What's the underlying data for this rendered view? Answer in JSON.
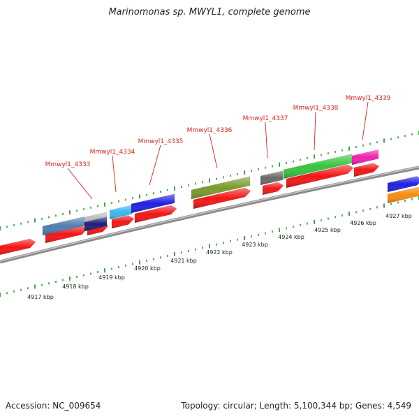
{
  "title": "Marinomonas sp. MWYL1, complete genome",
  "footer": {
    "accession": "Accession: NC_009654",
    "summary": "Topology: circular; Length: 5,100,344 bp; Genes: 4,549"
  },
  "colors": {
    "cds_red": "#f21616",
    "backbone": "#8a8a8a",
    "tick_green": "#1f8a1f",
    "label_red": "#e0201b"
  },
  "scale_labels": [
    "4917 kbp",
    "4918 kbp",
    "4919 kbp",
    "4920 kbp",
    "4921 kbp",
    "4922 kbp",
    "4923 kbp",
    "4924 kbp",
    "4925 kbp",
    "4926 kbp",
    "4927 kbp"
  ],
  "gene_labels": [
    "Mmwyl1_4333",
    "Mmwyl1_4334",
    "Mmwyl1_4335",
    "Mmwyl1_4336",
    "Mmwyl1_4337",
    "Mmwyl1_4338",
    "Mmwyl1_4339"
  ]
}
